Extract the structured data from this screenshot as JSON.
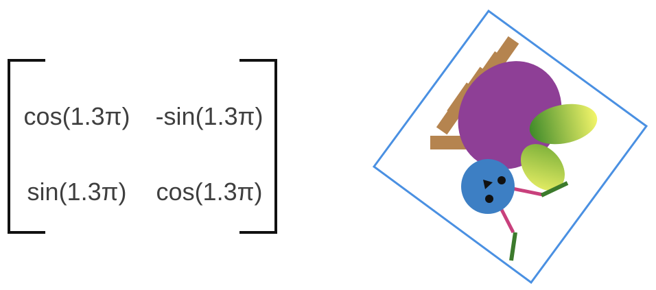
{
  "matrix": {
    "entries": [
      [
        "cos(1.3π)",
        "-sin(1.3π)"
      ],
      [
        "sin(1.3π)",
        "cos(1.3π)"
      ]
    ]
  },
  "figure": {
    "frame_color": "#4a90e2",
    "rotation_turns": 1.3,
    "parts": {
      "body": "#8e3f96",
      "head": "#3d7fc4",
      "spines": "#b5844f",
      "wing_light": "#f3f56a",
      "wing_dark": "#3f8a2a",
      "limbs": "#c8407c",
      "feet": "#3c7a2c",
      "eyes": "#111111"
    }
  }
}
